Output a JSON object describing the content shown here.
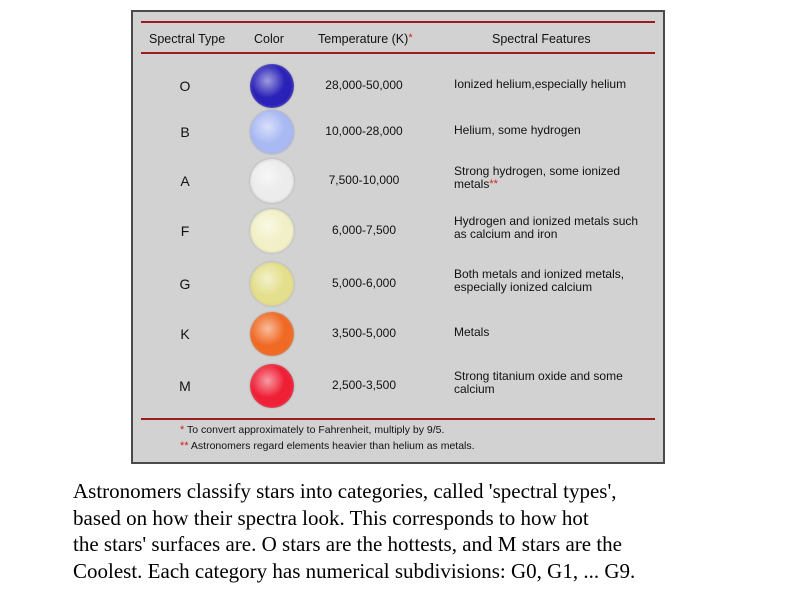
{
  "table": {
    "headers": {
      "spectral_type": "Spectral Type",
      "color": "Color",
      "temperature": "Temperature (K)",
      "temperature_marker": "*",
      "features": "Spectral Features"
    },
    "rows": [
      {
        "type": "O",
        "color": "#2a22b8",
        "temperature": "28,000-50,000",
        "features": "Ionized helium,especially helium",
        "marker": ""
      },
      {
        "type": "B",
        "color": "#a9b9f3",
        "temperature": "10,000-28,000",
        "features": "Helium, some hydrogen",
        "marker": ""
      },
      {
        "type": "A",
        "color": "#ececec",
        "temperature": "7,500-10,000",
        "features": "Strong hydrogen, some ionized metals",
        "marker": "**"
      },
      {
        "type": "F",
        "color": "#f2f0c6",
        "temperature": "6,000-7,500",
        "features": "Hydrogen and ionized metals such as calcium and iron",
        "marker": ""
      },
      {
        "type": "G",
        "color": "#e4df8c",
        "temperature": "5,000-6,000",
        "features": "Both metals and ionized metals, especially ionized calcium",
        "marker": ""
      },
      {
        "type": "K",
        "color": "#f06a24",
        "temperature": "3,500-5,000",
        "features": "Metals",
        "marker": ""
      },
      {
        "type": "M",
        "color": "#ef1f35",
        "temperature": "2,500-3,500",
        "features": "Strong titanium oxide and some calcium",
        "marker": ""
      }
    ],
    "footnotes": [
      {
        "marker": "*",
        "text": "To convert approximately to Fahrenheit, multiply by 9/5."
      },
      {
        "marker": "**",
        "text": "Astronomers regard elements heavier than helium as metals."
      }
    ]
  },
  "caption": {
    "lines": [
      "Astronomers classify stars into categories, called 'spectral types',",
      "based on how their spectra look.  This corresponds to how hot",
      "the stars' surfaces are.  O stars are the hottests, and M stars are the",
      "Coolest.  Each category has numerical subdivisions: G0, G1, ... G9."
    ]
  },
  "colors": {
    "rule": "#9b1c1c",
    "asterisk": "#d42020",
    "panel_background": "#d2d2d2"
  }
}
